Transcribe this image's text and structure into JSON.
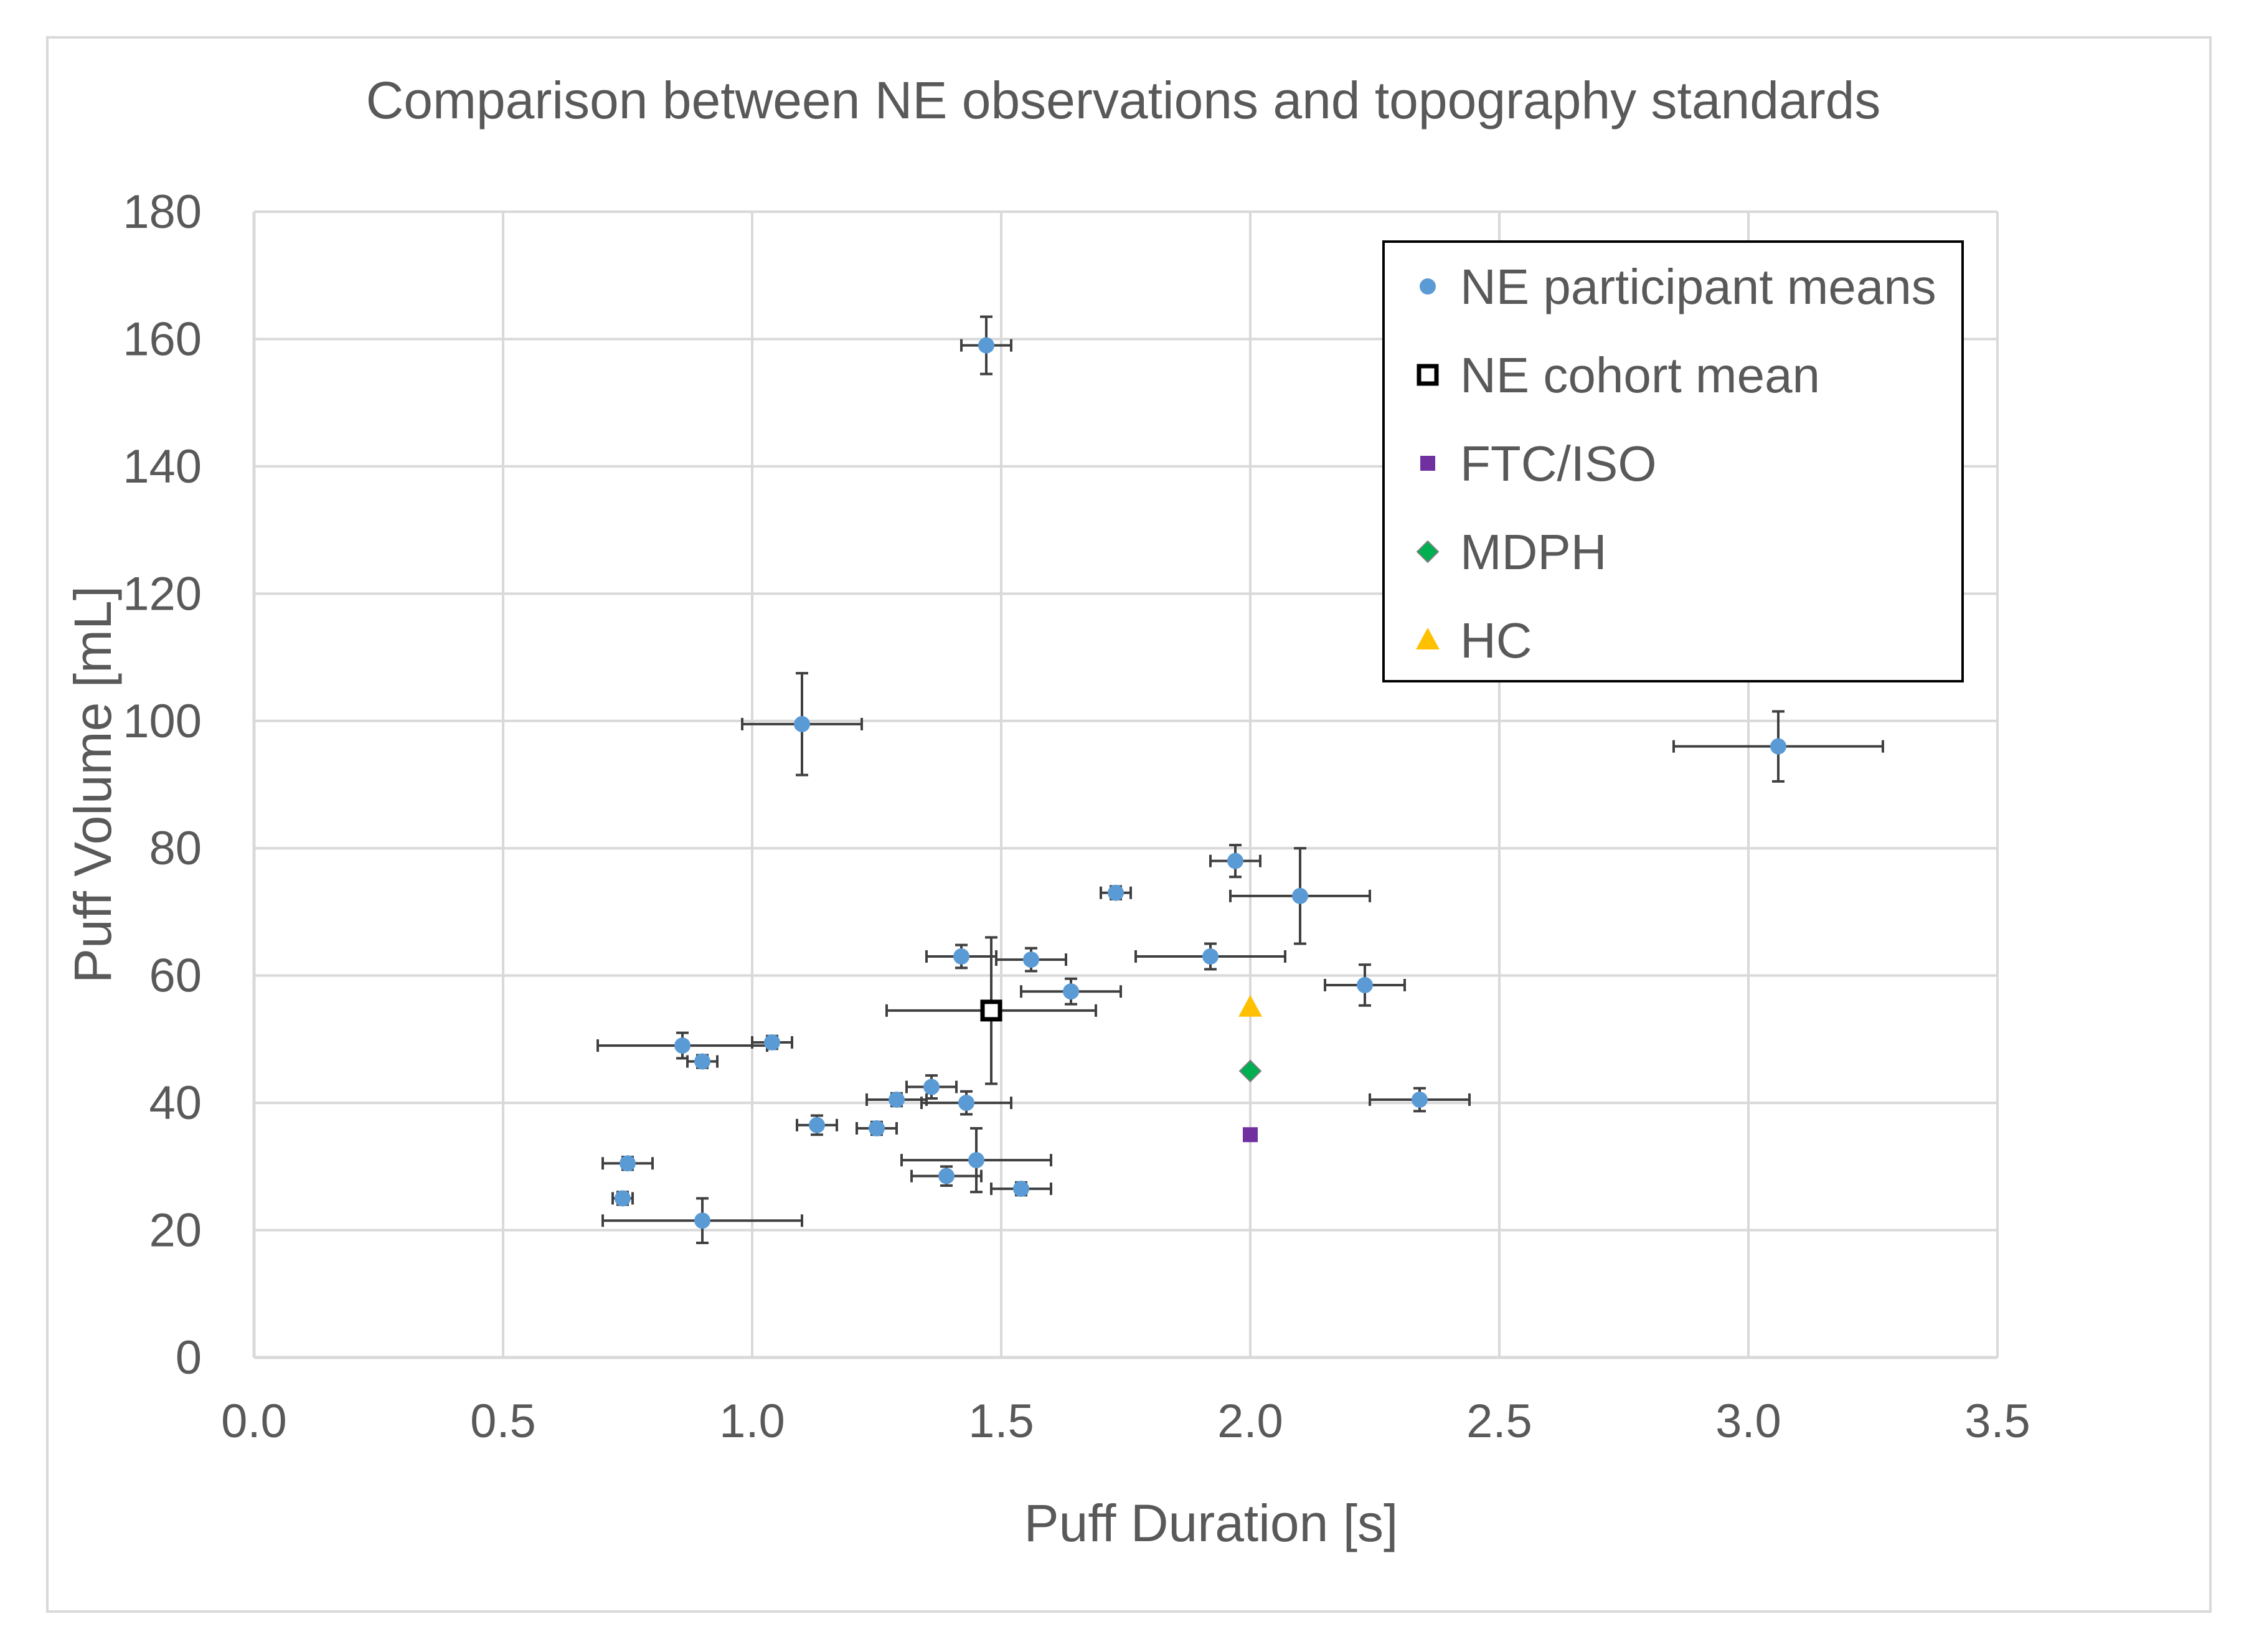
{
  "chart_data": {
    "type": "scatter",
    "title": "Comparison between NE observations and topography standards",
    "xlabel": "Puff Duration [s]",
    "ylabel": "Puff Volume [mL]",
    "xlim": [
      0,
      3.5
    ],
    "ylim": [
      0,
      180
    ],
    "xticks": [
      0.0,
      0.5,
      1.0,
      1.5,
      2.0,
      2.5,
      3.0,
      3.5
    ],
    "yticks": [
      0,
      20,
      40,
      60,
      80,
      100,
      120,
      140,
      160,
      180
    ],
    "xtick_labels": [
      "0.0",
      "0.5",
      "1.0",
      "1.5",
      "2.0",
      "2.5",
      "3.0",
      "3.5"
    ],
    "ytick_labels": [
      "0",
      "20",
      "40",
      "60",
      "80",
      "100",
      "120",
      "140",
      "160",
      "180"
    ],
    "grid": true,
    "legend_position": "top-right",
    "colors": {
      "participant": "#5b9bd5",
      "cohort": "#000000",
      "ftc_iso": "#7030a0",
      "mdph": "#00b050",
      "hc": "#ffc000",
      "grid": "#d9d9d9",
      "text": "#595959",
      "errorbar": "#404040"
    },
    "series": [
      {
        "name": "NE participant means",
        "marker": "circle",
        "points": [
          {
            "x": 1.47,
            "y": 159,
            "xerr": 0.05,
            "yerr": 4.5
          },
          {
            "x": 1.1,
            "y": 99.5,
            "xerr": 0.12,
            "yerr": 8
          },
          {
            "x": 3.06,
            "y": 96,
            "xerr": 0.21,
            "yerr": 5.5
          },
          {
            "x": 1.97,
            "y": 78,
            "xerr": 0.05,
            "yerr": 2.5
          },
          {
            "x": 2.1,
            "y": 72.5,
            "xerr": 0.14,
            "yerr": 7.5
          },
          {
            "x": 1.73,
            "y": 73,
            "xerr": 0.03,
            "yerr": 1
          },
          {
            "x": 1.42,
            "y": 63,
            "xerr": 0.07,
            "yerr": 1.8
          },
          {
            "x": 1.56,
            "y": 62.5,
            "xerr": 0.07,
            "yerr": 1.8
          },
          {
            "x": 1.92,
            "y": 63,
            "xerr": 0.15,
            "yerr": 2
          },
          {
            "x": 1.64,
            "y": 57.5,
            "xerr": 0.1,
            "yerr": 2
          },
          {
            "x": 2.23,
            "y": 58.5,
            "xerr": 0.08,
            "yerr": 3.2
          },
          {
            "x": 0.86,
            "y": 49,
            "xerr": 0.17,
            "yerr": 2
          },
          {
            "x": 1.04,
            "y": 49.5,
            "xerr": 0.04,
            "yerr": 1
          },
          {
            "x": 0.9,
            "y": 46.5,
            "xerr": 0.03,
            "yerr": 1
          },
          {
            "x": 1.36,
            "y": 42.5,
            "xerr": 0.05,
            "yerr": 1.8
          },
          {
            "x": 1.29,
            "y": 40.5,
            "xerr": 0.06,
            "yerr": 1
          },
          {
            "x": 1.43,
            "y": 40,
            "xerr": 0.09,
            "yerr": 1.8
          },
          {
            "x": 2.34,
            "y": 40.5,
            "xerr": 0.1,
            "yerr": 1.8
          },
          {
            "x": 1.13,
            "y": 36.5,
            "xerr": 0.04,
            "yerr": 1.5
          },
          {
            "x": 1.25,
            "y": 36,
            "xerr": 0.04,
            "yerr": 1
          },
          {
            "x": 1.45,
            "y": 31,
            "xerr": 0.15,
            "yerr": 5
          },
          {
            "x": 1.39,
            "y": 28.5,
            "xerr": 0.07,
            "yerr": 1.5
          },
          {
            "x": 1.54,
            "y": 26.5,
            "xerr": 0.06,
            "yerr": 1
          },
          {
            "x": 0.75,
            "y": 30.5,
            "xerr": 0.05,
            "yerr": 1
          },
          {
            "x": 0.74,
            "y": 25,
            "xerr": 0.02,
            "yerr": 1
          },
          {
            "x": 0.9,
            "y": 21.5,
            "xerr": 0.2,
            "yerr": 3.5
          }
        ]
      },
      {
        "name": "NE cohort mean",
        "marker": "square-open",
        "points": [
          {
            "x": 1.48,
            "y": 54.5,
            "xerr": 0.21,
            "yerr": 11.5
          }
        ]
      },
      {
        "name": "FTC/ISO",
        "marker": "square",
        "points": [
          {
            "x": 2.0,
            "y": 35
          }
        ]
      },
      {
        "name": "MDPH",
        "marker": "diamond",
        "points": [
          {
            "x": 2.0,
            "y": 45
          }
        ]
      },
      {
        "name": "HC",
        "marker": "triangle",
        "points": [
          {
            "x": 2.0,
            "y": 55
          }
        ]
      }
    ]
  }
}
